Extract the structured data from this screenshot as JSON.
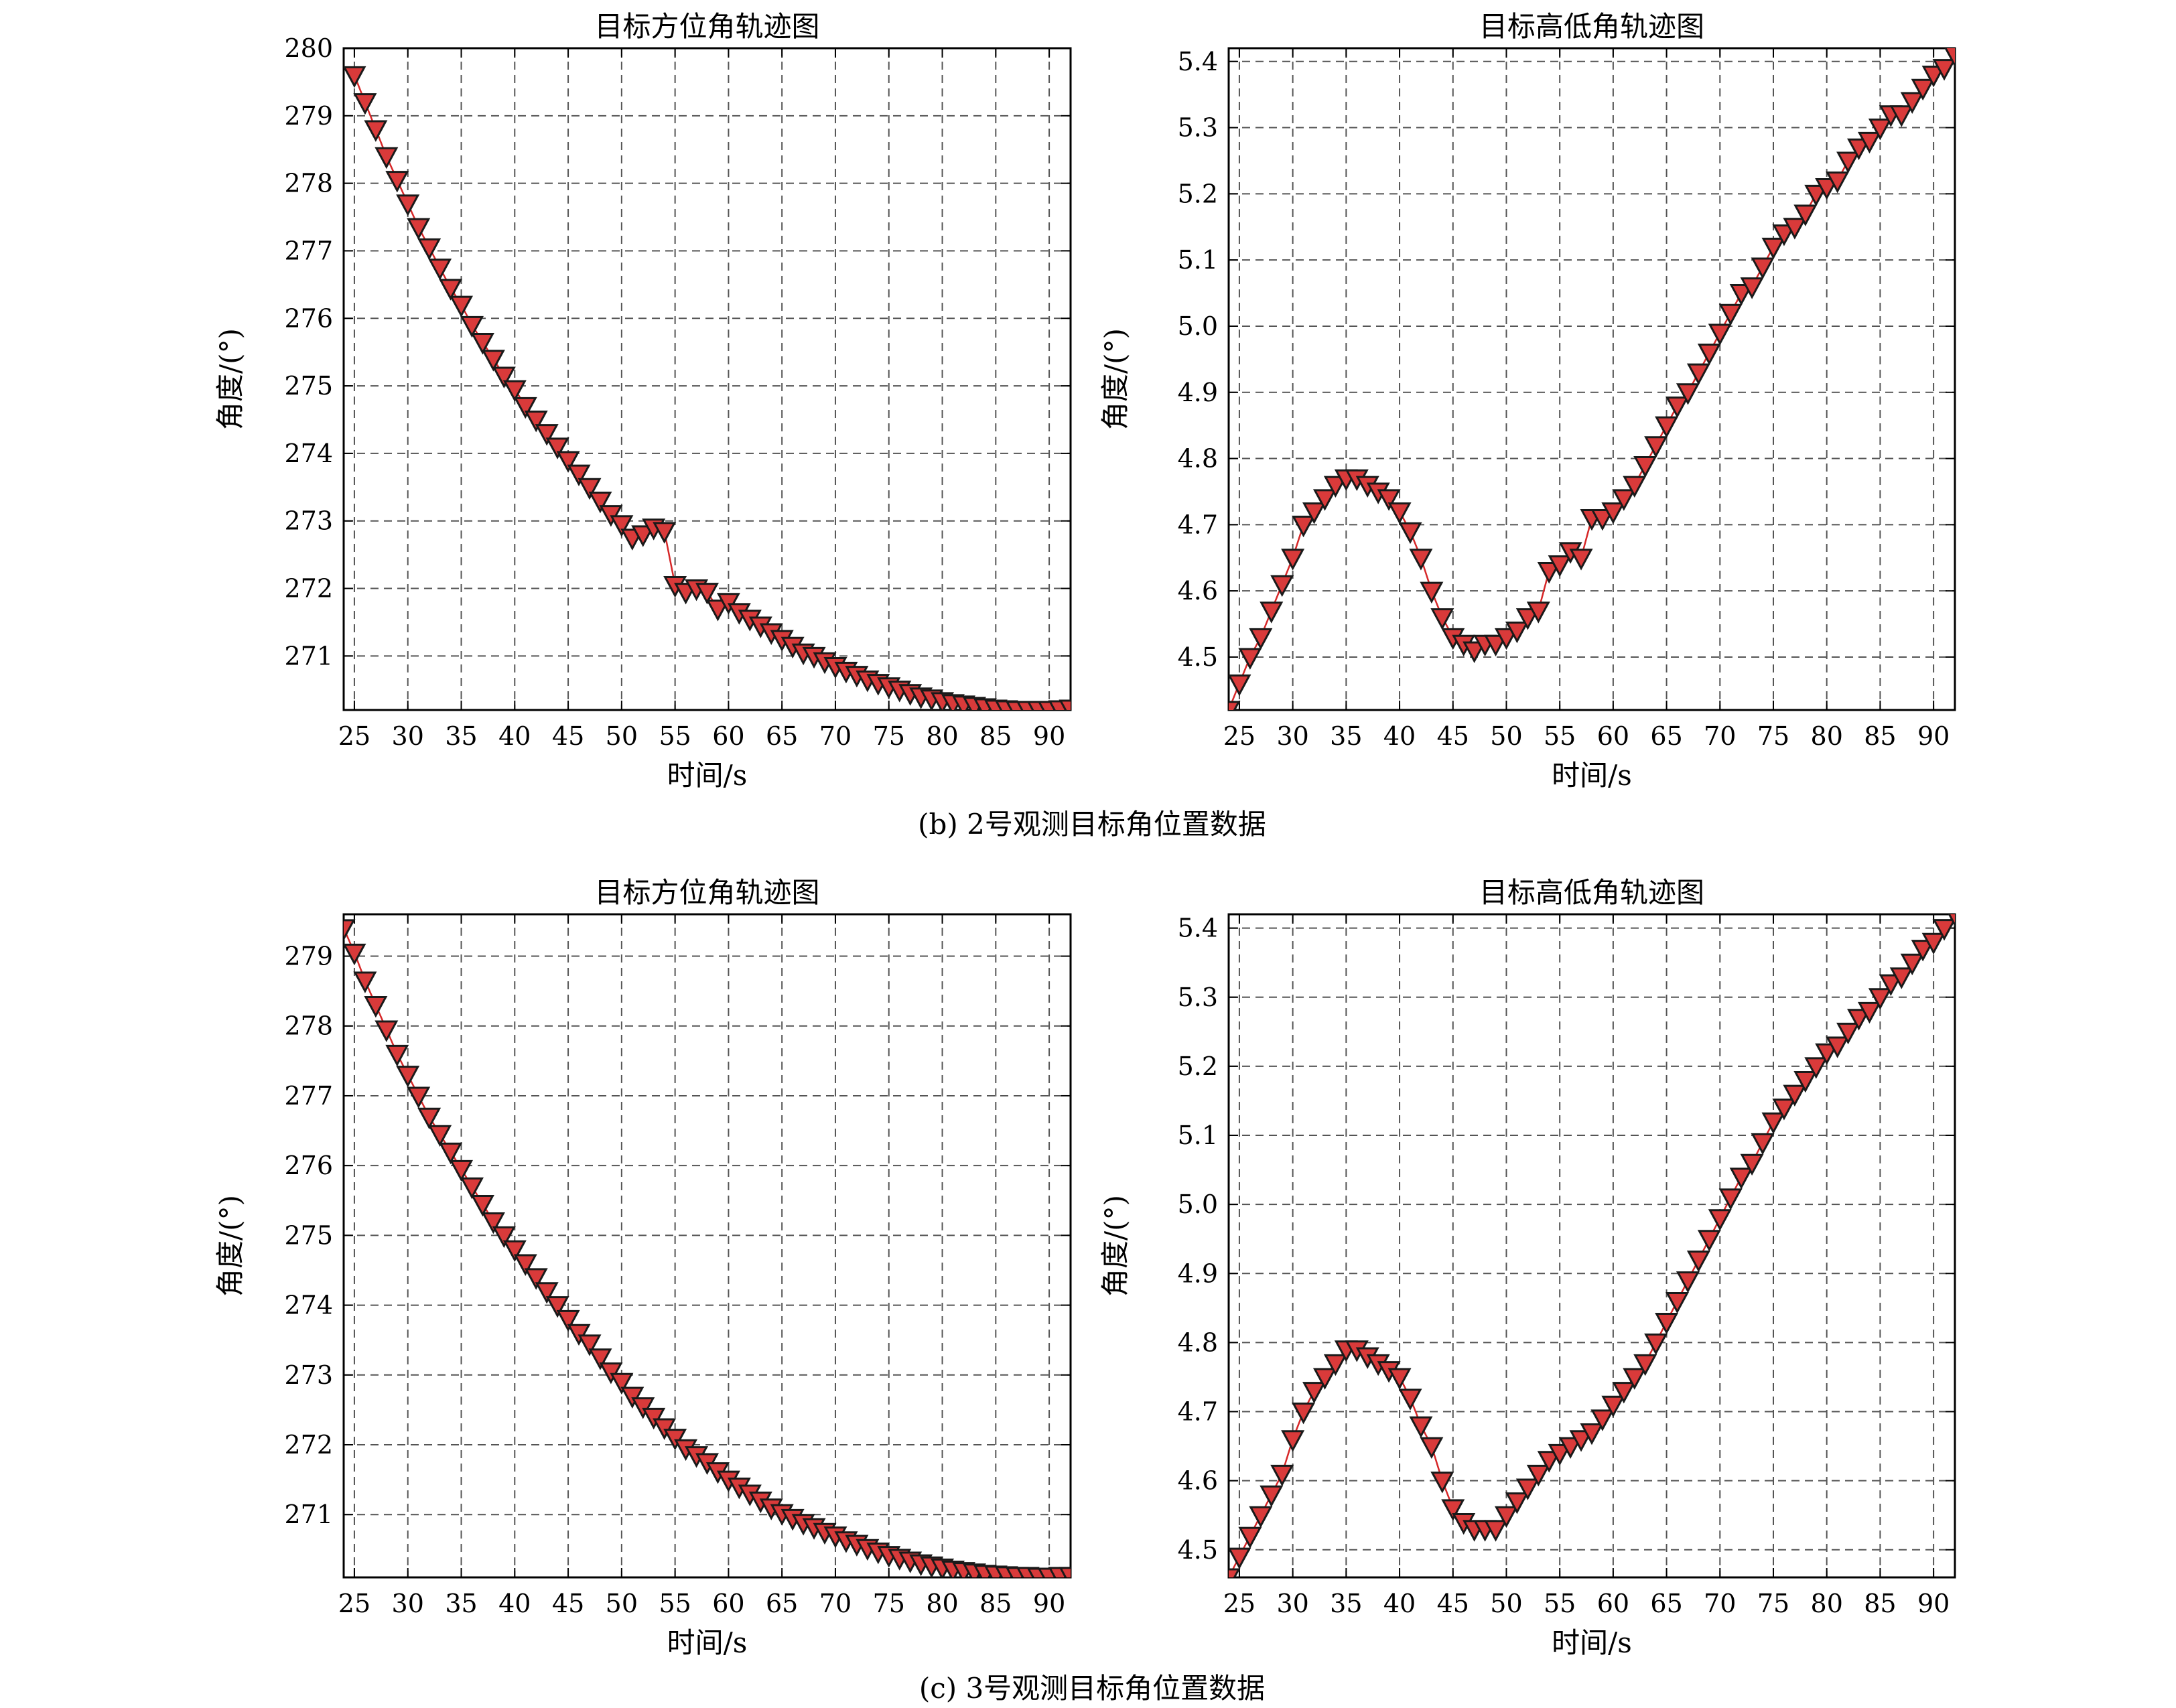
{
  "figure": {
    "captions": [
      "(b) 2号观测目标角位置数据",
      "(c) 3号观测目标角位置数据"
    ]
  },
  "colors": {
    "marker_fill": "#d93a3a",
    "line": "#d62728",
    "grid": "#555555",
    "marker_edge": "#1a1a1a"
  },
  "marker": "triangle-down",
  "chart_data": [
    {
      "panel": "b-left",
      "type": "line",
      "title": "目标方位角轨迹图",
      "xlabel": "时间/s",
      "ylabel": "角度/(°)",
      "xlim": [
        24,
        92
      ],
      "ylim": [
        270.2,
        280
      ],
      "xticks": [
        25,
        30,
        35,
        40,
        45,
        50,
        55,
        60,
        65,
        70,
        75,
        80,
        85,
        90
      ],
      "yticks": [
        271,
        272,
        273,
        274,
        275,
        276,
        277,
        278,
        279,
        280
      ],
      "grid": true,
      "x": [
        25,
        26,
        27,
        28,
        29,
        30,
        31,
        32,
        33,
        34,
        35,
        36,
        37,
        38,
        39,
        40,
        41,
        42,
        43,
        44,
        45,
        46,
        47,
        48,
        49,
        50,
        51,
        52,
        53,
        54,
        55,
        56,
        57,
        58,
        59,
        60,
        61,
        62,
        63,
        64,
        65,
        66,
        67,
        68,
        69,
        70,
        71,
        72,
        73,
        74,
        75,
        76,
        77,
        78,
        79,
        80,
        81,
        82,
        83,
        84,
        85,
        86,
        87,
        88,
        89,
        90,
        91,
        92
      ],
      "values": [
        279.6,
        279.2,
        278.8,
        278.4,
        278.05,
        277.7,
        277.35,
        277.05,
        276.75,
        276.45,
        276.2,
        275.9,
        275.65,
        275.4,
        275.15,
        274.95,
        274.7,
        274.5,
        274.3,
        274.1,
        273.9,
        273.7,
        273.5,
        273.3,
        273.1,
        272.95,
        272.75,
        272.8,
        272.9,
        272.85,
        272.05,
        271.95,
        272.0,
        271.95,
        271.7,
        271.8,
        271.65,
        271.55,
        271.45,
        271.35,
        271.25,
        271.15,
        271.05,
        271.0,
        270.92,
        270.85,
        270.78,
        270.72,
        270.65,
        270.6,
        270.55,
        270.5,
        270.45,
        270.4,
        270.37,
        270.33,
        270.3,
        270.28,
        270.26,
        270.24,
        270.22,
        270.21,
        270.2,
        270.2,
        270.2,
        270.2,
        270.21,
        270.22
      ]
    },
    {
      "panel": "b-right",
      "type": "line",
      "title": "目标高低角轨迹图",
      "xlabel": "时间/s",
      "ylabel": "角度/(°)",
      "xlim": [
        24,
        92
      ],
      "ylim": [
        4.42,
        5.42
      ],
      "xticks": [
        25,
        30,
        35,
        40,
        45,
        50,
        55,
        60,
        65,
        70,
        75,
        80,
        85,
        90
      ],
      "yticks": [
        4.5,
        4.6,
        4.7,
        4.8,
        4.9,
        5.0,
        5.1,
        5.2,
        5.3,
        5.4
      ],
      "grid": true,
      "x": [
        24,
        25,
        26,
        27,
        28,
        29,
        30,
        31,
        32,
        33,
        34,
        35,
        36,
        37,
        38,
        39,
        40,
        41,
        42,
        43,
        44,
        45,
        46,
        47,
        48,
        49,
        50,
        51,
        52,
        53,
        54,
        55,
        56,
        57,
        58,
        59,
        60,
        61,
        62,
        63,
        64,
        65,
        66,
        67,
        68,
        69,
        70,
        71,
        72,
        73,
        74,
        75,
        76,
        77,
        78,
        79,
        80,
        81,
        82,
        83,
        84,
        85,
        86,
        87,
        88,
        89,
        90,
        91,
        92
      ],
      "values": [
        4.42,
        4.46,
        4.5,
        4.53,
        4.57,
        4.61,
        4.65,
        4.7,
        4.72,
        4.74,
        4.76,
        4.77,
        4.77,
        4.76,
        4.75,
        4.74,
        4.72,
        4.69,
        4.65,
        4.6,
        4.56,
        4.53,
        4.52,
        4.51,
        4.52,
        4.52,
        4.53,
        4.54,
        4.56,
        4.57,
        4.63,
        4.64,
        4.66,
        4.65,
        4.71,
        4.71,
        4.72,
        4.74,
        4.76,
        4.79,
        4.82,
        4.85,
        4.88,
        4.9,
        4.93,
        4.96,
        4.99,
        5.02,
        5.05,
        5.06,
        5.09,
        5.12,
        5.14,
        5.15,
        5.17,
        5.2,
        5.21,
        5.22,
        5.25,
        5.27,
        5.28,
        5.3,
        5.32,
        5.32,
        5.34,
        5.36,
        5.38,
        5.39,
        5.41
      ]
    },
    {
      "panel": "c-left",
      "type": "line",
      "title": "目标方位角轨迹图",
      "xlabel": "时间/s",
      "ylabel": "角度/(°)",
      "xlim": [
        24,
        92
      ],
      "ylim": [
        270.1,
        279.6
      ],
      "xticks": [
        25,
        30,
        35,
        40,
        45,
        50,
        55,
        60,
        65,
        70,
        75,
        80,
        85,
        90
      ],
      "yticks": [
        271,
        272,
        273,
        274,
        275,
        276,
        277,
        278,
        279
      ],
      "grid": true,
      "x": [
        24,
        25,
        26,
        27,
        28,
        29,
        30,
        31,
        32,
        33,
        34,
        35,
        36,
        37,
        38,
        39,
        40,
        41,
        42,
        43,
        44,
        45,
        46,
        47,
        48,
        49,
        50,
        51,
        52,
        53,
        54,
        55,
        56,
        57,
        58,
        59,
        60,
        61,
        62,
        63,
        64,
        65,
        66,
        67,
        68,
        69,
        70,
        71,
        72,
        73,
        74,
        75,
        76,
        77,
        78,
        79,
        80,
        81,
        82,
        83,
        84,
        85,
        86,
        87,
        88,
        89,
        90,
        91,
        92
      ],
      "values": [
        279.4,
        279.05,
        278.65,
        278.3,
        277.95,
        277.6,
        277.3,
        277.0,
        276.7,
        276.45,
        276.2,
        275.95,
        275.7,
        275.45,
        275.2,
        275.0,
        274.8,
        274.6,
        274.4,
        274.2,
        274.0,
        273.8,
        273.6,
        273.45,
        273.25,
        273.05,
        272.9,
        272.7,
        272.55,
        272.4,
        272.25,
        272.1,
        271.95,
        271.85,
        271.75,
        271.62,
        271.5,
        271.4,
        271.3,
        271.2,
        271.1,
        271.02,
        270.95,
        270.88,
        270.82,
        270.75,
        270.7,
        270.63,
        270.58,
        270.52,
        270.47,
        270.42,
        270.38,
        270.34,
        270.3,
        270.27,
        270.24,
        270.21,
        270.19,
        270.17,
        270.15,
        270.14,
        270.13,
        270.12,
        270.12,
        270.11,
        270.11,
        270.12,
        270.12
      ]
    },
    {
      "panel": "c-right",
      "type": "line",
      "title": "目标高低角轨迹图",
      "xlabel": "时间/s",
      "ylabel": "角度/(°)",
      "xlim": [
        24,
        92
      ],
      "ylim": [
        4.46,
        5.42
      ],
      "xticks": [
        25,
        30,
        35,
        40,
        45,
        50,
        55,
        60,
        65,
        70,
        75,
        80,
        85,
        90
      ],
      "yticks": [
        4.5,
        4.6,
        4.7,
        4.8,
        4.9,
        5.0,
        5.1,
        5.2,
        5.3,
        5.4
      ],
      "grid": true,
      "x": [
        24,
        25,
        26,
        27,
        28,
        29,
        30,
        31,
        32,
        33,
        34,
        35,
        36,
        37,
        38,
        39,
        40,
        41,
        42,
        43,
        44,
        45,
        46,
        47,
        48,
        49,
        50,
        51,
        52,
        53,
        54,
        55,
        56,
        57,
        58,
        59,
        60,
        61,
        62,
        63,
        64,
        65,
        66,
        67,
        68,
        69,
        70,
        71,
        72,
        73,
        74,
        75,
        76,
        77,
        78,
        79,
        80,
        81,
        82,
        83,
        84,
        85,
        86,
        87,
        88,
        89,
        90,
        91,
        92
      ],
      "values": [
        4.46,
        4.49,
        4.52,
        4.55,
        4.58,
        4.61,
        4.66,
        4.7,
        4.73,
        4.75,
        4.77,
        4.79,
        4.79,
        4.78,
        4.77,
        4.76,
        4.75,
        4.72,
        4.68,
        4.65,
        4.6,
        4.56,
        4.54,
        4.53,
        4.53,
        4.53,
        4.55,
        4.57,
        4.59,
        4.61,
        4.63,
        4.64,
        4.65,
        4.66,
        4.67,
        4.69,
        4.71,
        4.73,
        4.75,
        4.77,
        4.8,
        4.83,
        4.86,
        4.89,
        4.92,
        4.95,
        4.98,
        5.01,
        5.04,
        5.06,
        5.09,
        5.12,
        5.14,
        5.16,
        5.18,
        5.2,
        5.22,
        5.23,
        5.25,
        5.27,
        5.28,
        5.3,
        5.32,
        5.33,
        5.35,
        5.37,
        5.38,
        5.4,
        5.42
      ]
    }
  ]
}
